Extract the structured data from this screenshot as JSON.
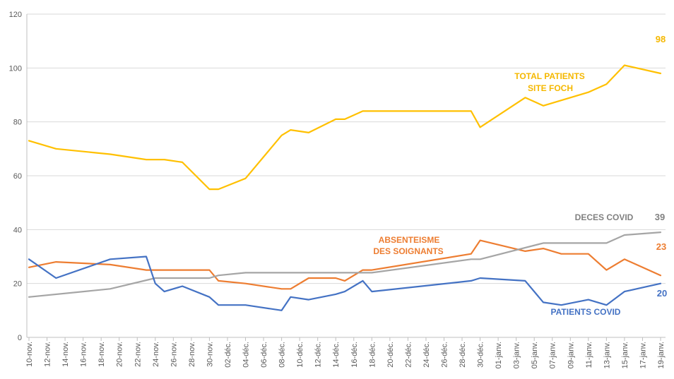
{
  "chart_data": {
    "type": "line",
    "ylim": [
      0,
      120
    ],
    "y_ticks": [
      0,
      20,
      40,
      60,
      80,
      100,
      120
    ],
    "x_ticks": [
      "10-nov.",
      "12-nov.",
      "14-nov.",
      "16-nov.",
      "18-nov.",
      "20-nov.",
      "22-nov.",
      "24-nov.",
      "26-nov.",
      "28-nov.",
      "30-nov.",
      "02-déc.",
      "04-déc.",
      "06-déc.",
      "08-déc.",
      "10-déc.",
      "12-déc.",
      "14-déc.",
      "16-déc.",
      "18-déc.",
      "20-déc.",
      "22-déc.",
      "24-déc.",
      "26-déc.",
      "28-déc.",
      "30-déc.",
      "01-janv.",
      "03-janv.",
      "05-janv.",
      "07-janv.",
      "09-janv.",
      "11-janv.",
      "13-janv.",
      "15-janv.",
      "17-janv.",
      "19-janv."
    ],
    "grid": "horizontal",
    "legend": "none",
    "series": [
      {
        "name_lines": [
          "TOTAL PATIENTS",
          "SITE FOCH"
        ],
        "end_label": "98",
        "color": "#FFC000",
        "label_color": "#F5B800",
        "points": [
          [
            "10-nov.",
            73
          ],
          [
            "13-nov.",
            70
          ],
          [
            "19-nov.",
            68
          ],
          [
            "23-nov.",
            66
          ],
          [
            "25-nov.",
            66
          ],
          [
            "27-nov.",
            65
          ],
          [
            "30-nov.",
            55
          ],
          [
            "01-déc.",
            55
          ],
          [
            "04-déc.",
            59
          ],
          [
            "08-déc.",
            75
          ],
          [
            "09-déc.",
            77
          ],
          [
            "11-déc.",
            76
          ],
          [
            "14-déc.",
            81
          ],
          [
            "15-déc.",
            81
          ],
          [
            "17-déc.",
            84
          ],
          [
            "29-déc.",
            84
          ],
          [
            "30-déc.",
            78
          ],
          [
            "04-janv.",
            89
          ],
          [
            "06-janv.",
            86
          ],
          [
            "11-janv.",
            91
          ],
          [
            "13-janv.",
            94
          ],
          [
            "15-janv.",
            101
          ],
          [
            "19-janv.",
            98
          ]
        ]
      },
      {
        "name_lines": [
          "ABSENTEISME",
          "DES SOIGNANTS"
        ],
        "end_label": "23",
        "color": "#ED7D31",
        "label_color": "#ED7D31",
        "points": [
          [
            "10-nov.",
            26
          ],
          [
            "13-nov.",
            28
          ],
          [
            "19-nov.",
            27
          ],
          [
            "23-nov.",
            25
          ],
          [
            "30-nov.",
            25
          ],
          [
            "01-déc.",
            21
          ],
          [
            "04-déc.",
            20
          ],
          [
            "08-déc.",
            18
          ],
          [
            "09-déc.",
            18
          ],
          [
            "11-déc.",
            22
          ],
          [
            "14-déc.",
            22
          ],
          [
            "15-déc.",
            21
          ],
          [
            "17-déc.",
            25
          ],
          [
            "18-déc.",
            25
          ],
          [
            "29-déc.",
            31
          ],
          [
            "30-déc.",
            36
          ],
          [
            "04-janv.",
            32
          ],
          [
            "06-janv.",
            33
          ],
          [
            "08-janv.",
            31
          ],
          [
            "11-janv.",
            31
          ],
          [
            "13-janv.",
            25
          ],
          [
            "15-janv.",
            29
          ],
          [
            "19-janv.",
            23
          ]
        ]
      },
      {
        "name_lines": [
          "DECES COVID"
        ],
        "end_label": "39",
        "color": "#A5A5A5",
        "label_color": "#808080",
        "points": [
          [
            "10-nov.",
            15
          ],
          [
            "19-nov.",
            18
          ],
          [
            "24-nov.",
            22
          ],
          [
            "30-nov.",
            22
          ],
          [
            "01-déc.",
            23
          ],
          [
            "04-déc.",
            24
          ],
          [
            "18-déc.",
            24
          ],
          [
            "29-déc.",
            29
          ],
          [
            "30-déc.",
            29
          ],
          [
            "06-janv.",
            35
          ],
          [
            "13-janv.",
            35
          ],
          [
            "15-janv.",
            38
          ],
          [
            "19-janv.",
            39
          ]
        ]
      },
      {
        "name_lines": [
          "PATIENTS COVID"
        ],
        "end_label": "20",
        "color": "#4472C4",
        "label_color": "#4472C4",
        "points": [
          [
            "10-nov.",
            29
          ],
          [
            "13-nov.",
            22
          ],
          [
            "19-nov.",
            29
          ],
          [
            "23-nov.",
            30
          ],
          [
            "24-nov.",
            20
          ],
          [
            "25-nov.",
            17
          ],
          [
            "27-nov.",
            19
          ],
          [
            "30-nov.",
            15
          ],
          [
            "01-déc.",
            12
          ],
          [
            "04-déc.",
            12
          ],
          [
            "08-déc.",
            10
          ],
          [
            "09-déc.",
            15
          ],
          [
            "11-déc.",
            14
          ],
          [
            "14-déc.",
            16
          ],
          [
            "15-déc.",
            17
          ],
          [
            "17-déc.",
            21
          ],
          [
            "18-déc.",
            17
          ],
          [
            "29-déc.",
            21
          ],
          [
            "30-déc.",
            22
          ],
          [
            "04-janv.",
            21
          ],
          [
            "06-janv.",
            13
          ],
          [
            "08-janv.",
            12
          ],
          [
            "11-janv.",
            14
          ],
          [
            "13-janv.",
            12
          ],
          [
            "15-janv.",
            17
          ],
          [
            "19-janv.",
            20
          ]
        ]
      }
    ]
  }
}
